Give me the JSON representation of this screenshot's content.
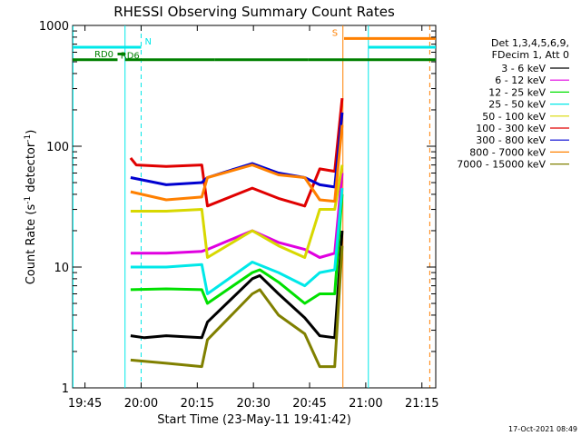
{
  "chart_data": {
    "type": "line",
    "title": "RHESSI Observing Summary Count Rates",
    "xlabel": "Start Time (23-May-11 19:41:42)",
    "ylabel_main": "Count Rate (s",
    "ylabel_sup1": "-1",
    "ylabel_mid": " detector",
    "ylabel_sup2": "-1",
    "ylabel_end": ")",
    "ylog": true,
    "ylim": [
      1,
      1000
    ],
    "xlim_minutes": [
      0,
      97
    ],
    "x_ticks": [
      {
        "m": 3.3,
        "label": "19:45"
      },
      {
        "m": 18.3,
        "label": "20:00"
      },
      {
        "m": 33.3,
        "label": "20:15"
      },
      {
        "m": 48.3,
        "label": "20:30"
      },
      {
        "m": 63.3,
        "label": "20:45"
      },
      {
        "m": 78.3,
        "label": "21:00"
      },
      {
        "m": 93.3,
        "label": "21:15"
      }
    ],
    "y_ticks": [
      {
        "v": 1,
        "label": "1"
      },
      {
        "v": 10,
        "label": "10"
      },
      {
        "v": 100,
        "label": "100"
      },
      {
        "v": 1000,
        "label": "1000"
      }
    ],
    "legend_header": [
      "Det 1,3,4,5,6,9,",
      "FDecim 1, Att 0"
    ],
    "legend_position": "right",
    "series": [
      {
        "name": "3 - 6 keV",
        "color": "#000000",
        "values": [
          [
            15.5,
            2.7
          ],
          [
            19.2,
            2.6
          ],
          [
            25,
            2.7
          ],
          [
            34.5,
            2.6
          ],
          [
            36,
            3.5
          ],
          [
            48,
            8
          ],
          [
            50,
            8.5
          ],
          [
            55,
            6
          ],
          [
            62,
            3.8
          ],
          [
            66,
            2.7
          ],
          [
            70,
            2.6
          ],
          [
            72,
            20
          ]
        ]
      },
      {
        "name": "6 - 12 keV",
        "color": "#e000e0",
        "values": [
          [
            15.5,
            13
          ],
          [
            25,
            13
          ],
          [
            34.5,
            13.5
          ],
          [
            36,
            14
          ],
          [
            48,
            20
          ],
          [
            55,
            16
          ],
          [
            62,
            14
          ],
          [
            66,
            12
          ],
          [
            70,
            13
          ],
          [
            72,
            60
          ]
        ]
      },
      {
        "name": "12 - 25 keV",
        "color": "#00e000",
        "values": [
          [
            15.5,
            6.5
          ],
          [
            25,
            6.6
          ],
          [
            34.5,
            6.5
          ],
          [
            36,
            5
          ],
          [
            48,
            9
          ],
          [
            50,
            9.5
          ],
          [
            55,
            7.5
          ],
          [
            62,
            5
          ],
          [
            66,
            6
          ],
          [
            70,
            6
          ],
          [
            72,
            40
          ]
        ]
      },
      {
        "name": "25 - 50 keV",
        "color": "#00e8e8",
        "values": [
          [
            15.5,
            10
          ],
          [
            25,
            10
          ],
          [
            34.5,
            10.5
          ],
          [
            36,
            6
          ],
          [
            48,
            11
          ],
          [
            55,
            9
          ],
          [
            62,
            7
          ],
          [
            66,
            9
          ],
          [
            70,
            9.5
          ],
          [
            72,
            45
          ]
        ]
      },
      {
        "name": "50 - 100 keV",
        "color": "#d8d800",
        "values": [
          [
            15.5,
            29
          ],
          [
            25,
            29
          ],
          [
            34.5,
            30
          ],
          [
            36,
            12
          ],
          [
            48,
            20
          ],
          [
            55,
            15
          ],
          [
            62,
            12
          ],
          [
            66,
            30
          ],
          [
            70,
            30
          ],
          [
            72,
            70
          ]
        ]
      },
      {
        "name": "100 - 300 keV",
        "color": "#e00000",
        "values": [
          [
            15.5,
            80
          ],
          [
            17,
            70
          ],
          [
            25,
            68
          ],
          [
            34.5,
            70
          ],
          [
            36,
            32
          ],
          [
            48,
            45
          ],
          [
            55,
            37
          ],
          [
            62,
            32
          ],
          [
            66,
            65
          ],
          [
            70,
            62
          ],
          [
            72,
            250
          ]
        ]
      },
      {
        "name": "300 - 800 keV",
        "color": "#0000d0",
        "values": [
          [
            15.5,
            55
          ],
          [
            25,
            48
          ],
          [
            34.5,
            50
          ],
          [
            36,
            55
          ],
          [
            48,
            72
          ],
          [
            55,
            60
          ],
          [
            62,
            55
          ],
          [
            66,
            48
          ],
          [
            70,
            46
          ],
          [
            72,
            190
          ]
        ]
      },
      {
        "name": "800 - 7000 keV",
        "color": "#ff8000",
        "values": [
          [
            15.5,
            42
          ],
          [
            25,
            36
          ],
          [
            34.5,
            38
          ],
          [
            36,
            55
          ],
          [
            48,
            70
          ],
          [
            55,
            58
          ],
          [
            62,
            55
          ],
          [
            66,
            36
          ],
          [
            70,
            35
          ],
          [
            72,
            150
          ]
        ]
      },
      {
        "name": "7000 - 15000 keV",
        "color": "#808000",
        "values": [
          [
            15.5,
            1.7
          ],
          [
            25,
            1.6
          ],
          [
            34.5,
            1.5
          ],
          [
            36,
            2.5
          ],
          [
            48,
            6
          ],
          [
            50,
            6.5
          ],
          [
            55,
            4
          ],
          [
            62,
            2.8
          ],
          [
            66,
            1.5
          ],
          [
            70,
            1.5
          ],
          [
            72,
            15
          ]
        ]
      }
    ],
    "flag_bars": [
      {
        "label": "RD0",
        "color": "#008000",
        "segments": [
          [
            0,
            12
          ],
          [
            14,
            38
          ],
          [
            38,
            63
          ],
          [
            63,
            97
          ]
        ],
        "y": 520
      },
      {
        "label": "RD6",
        "color": "#008000",
        "segments": [
          [
            12,
            14
          ]
        ],
        "y": 580
      },
      {
        "label": "N",
        "color": "#00e8e8",
        "segments": [
          [
            0,
            18.3
          ],
          [
            79,
            97
          ]
        ],
        "y": 660
      },
      {
        "label": "S",
        "color": "#ff8000",
        "segments": [
          [
            72.5,
            97
          ]
        ],
        "y": 780
      }
    ],
    "vlines": [
      {
        "m": 0.1,
        "color": "#00e8e8",
        "style": "solid"
      },
      {
        "m": 14,
        "color": "#00e8e8",
        "style": "solid"
      },
      {
        "m": 18.3,
        "color": "#00e8e8",
        "style": "dashed"
      },
      {
        "m": 72.2,
        "color": "#ff8000",
        "style": "solid"
      },
      {
        "m": 79,
        "color": "#00e8e8",
        "style": "solid"
      },
      {
        "m": 95.4,
        "color": "#ff8000",
        "style": "dashed"
      }
    ]
  },
  "timestamp": "17-Oct-2021 08:49"
}
